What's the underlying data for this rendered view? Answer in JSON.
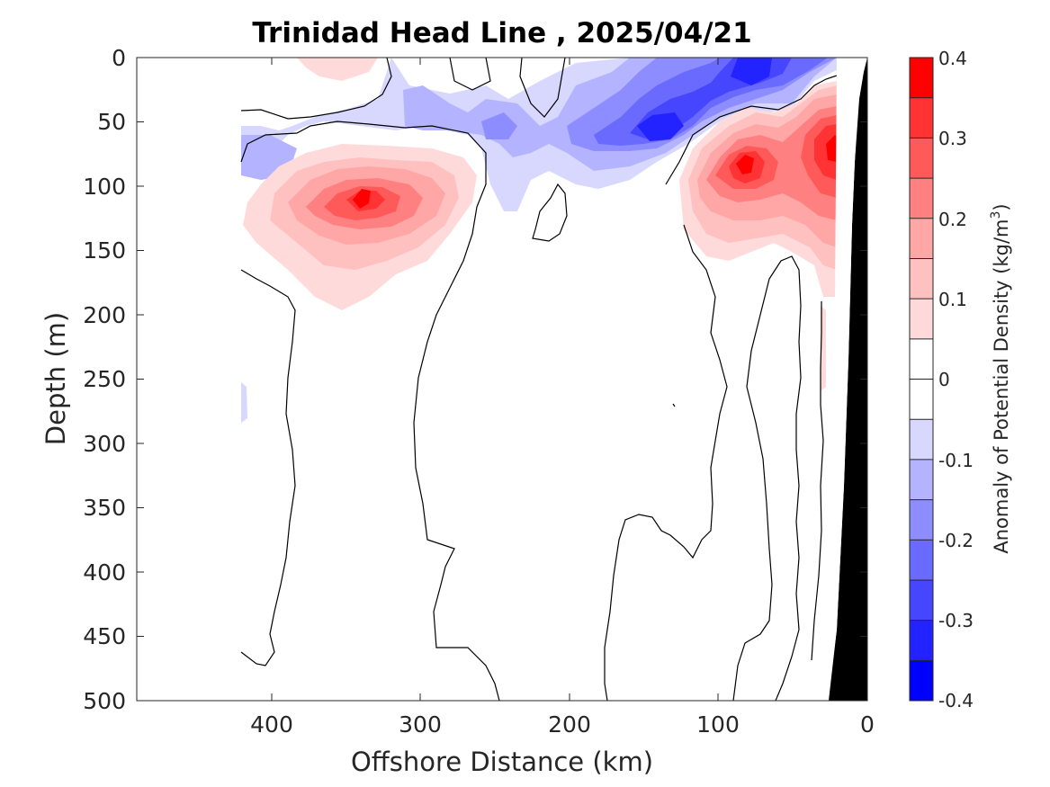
{
  "chart_data": {
    "type": "contour",
    "title": "Trinidad Head Line , 2025/04/21",
    "xlabel": "Offshore Distance (km)",
    "ylabel": "Depth (m)",
    "xlim": [
      490,
      0
    ],
    "ylim": [
      0,
      500
    ],
    "x_reversed": true,
    "y_reversed": true,
    "xticks": [
      "400",
      "300",
      "200",
      "100",
      "0"
    ],
    "yticks": [
      "0",
      "50",
      "100",
      "150",
      "200",
      "250",
      "300",
      "350",
      "400",
      "450",
      "500"
    ],
    "colorbar": {
      "label": "Anomaly of Potential Density (kg/m",
      "label_sup": "3",
      "label_end": ")",
      "ticks": [
        "0.4",
        "0.3",
        "0.2",
        "0.1",
        "0",
        "-0.1",
        "-0.2",
        "-0.3",
        "-0.4"
      ],
      "levels": [
        0.4,
        0.35,
        0.3,
        0.25,
        0.2,
        0.15,
        0.1,
        0.05,
        -0.05,
        -0.1,
        -0.15,
        -0.2,
        -0.25,
        -0.3,
        -0.35,
        -0.4
      ],
      "colors": [
        "#ff0000",
        "#ff3333",
        "#ff5a5a",
        "#ff8080",
        "#ffa6a6",
        "#ffc0c0",
        "#ffdada",
        "#ffffff",
        "#ffffff",
        "#d8d8ff",
        "#b3b3ff",
        "#8d8dff",
        "#6a6aff",
        "#4646ff",
        "#2323ff",
        "#0000ff"
      ]
    },
    "data_extent": {
      "x_max_km": 420
    },
    "features": [
      {
        "name": "positive anomaly core offshore",
        "x_km": 335,
        "depth_m": 110,
        "value": 0.35
      },
      {
        "name": "positive anomaly core nearshore",
        "x_km": 82,
        "depth_m": 70,
        "value": 0.35
      },
      {
        "name": "positive anomaly core coastal",
        "x_km": 22,
        "depth_m": 60,
        "value": 0.35
      },
      {
        "name": "negative anomaly core",
        "x_km": 140,
        "depth_m": 60,
        "value": -0.3
      },
      {
        "name": "negative anomaly surface",
        "x_km": 80,
        "depth_m": 10,
        "value": -0.35
      }
    ],
    "bathymetry_color": "#000000"
  }
}
